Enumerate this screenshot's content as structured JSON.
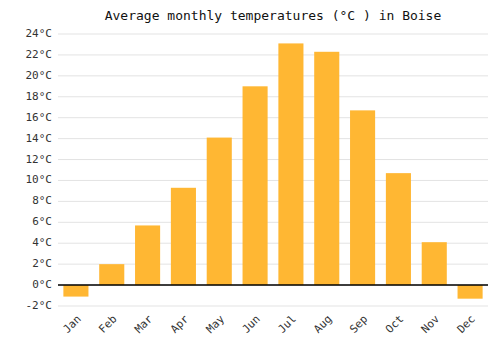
{
  "chart_data": {
    "type": "bar",
    "title": "Average monthly temperatures (°C ) in Boise",
    "categories": [
      "Jan",
      "Feb",
      "Mar",
      "Apr",
      "May",
      "Jun",
      "Jul",
      "Aug",
      "Sep",
      "Oct",
      "Nov",
      "Dec"
    ],
    "values": [
      -1.1,
      2.0,
      5.7,
      9.3,
      14.1,
      19.0,
      23.1,
      22.3,
      16.7,
      10.7,
      4.1,
      -1.3
    ],
    "color": "#FFB733",
    "ylim": [
      -2,
      24
    ],
    "yticks": [
      {
        "value": -2,
        "label": "-2°C"
      },
      {
        "value": 0,
        "label": "0°C"
      },
      {
        "value": 2,
        "label": "2°C"
      },
      {
        "value": 4,
        "label": "4°C"
      },
      {
        "value": 6,
        "label": "6°C"
      },
      {
        "value": 8,
        "label": "8°C"
      },
      {
        "value": 10,
        "label": "10°C"
      },
      {
        "value": 12,
        "label": "12°C"
      },
      {
        "value": 14,
        "label": "14°C"
      },
      {
        "value": 16,
        "label": "16°C"
      },
      {
        "value": 18,
        "label": "18°C"
      },
      {
        "value": 20,
        "label": "20°C"
      },
      {
        "value": 22,
        "label": "22°C"
      },
      {
        "value": 24,
        "label": "24°C"
      }
    ],
    "grid": true
  }
}
